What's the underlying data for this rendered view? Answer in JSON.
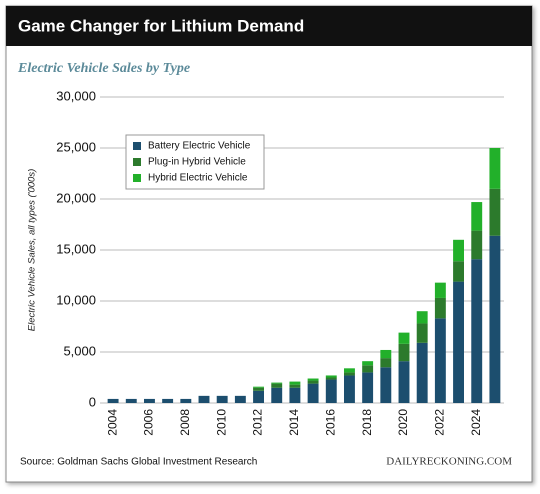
{
  "chart_data": {
    "type": "stacked_bar",
    "title": "Game Changer for Lithium Demand",
    "subtitle": "Electric Vehicle Sales by Type",
    "y_label": "Electric Vehicle Sales, all types ('000s)",
    "source": "Source: Goldman Sachs Global Investment Research",
    "brand": "DAILYRECKONING.COM",
    "categories": [
      "2004",
      null,
      "2006",
      null,
      "2008",
      null,
      "2010",
      null,
      "2012",
      null,
      "2014",
      null,
      "2016",
      null,
      "2018",
      null,
      "2020",
      null,
      "2022",
      null,
      "2024",
      null
    ],
    "series": [
      {
        "name": "Battery Electric Vehicle",
        "color": "#1c4e6e",
        "values": [
          400,
          400,
          400,
          400,
          400,
          700,
          700,
          700,
          1200,
          1500,
          1500,
          1900,
          2300,
          2700,
          3000,
          3500,
          4100,
          5900,
          8300,
          11900,
          14100,
          16400
        ]
      },
      {
        "name": "Plug-in Hybrid Vehicle",
        "color": "#2c7a2c",
        "values": [
          0,
          0,
          0,
          0,
          0,
          0,
          0,
          0,
          300,
          400,
          300,
          300,
          200,
          300,
          700,
          900,
          1700,
          1900,
          2000,
          2000,
          2800,
          4600
        ]
      },
      {
        "name": "Hybrid Electric Vehicle",
        "color": "#22b02a",
        "values": [
          0,
          0,
          0,
          0,
          0,
          0,
          0,
          0,
          100,
          100,
          300,
          200,
          200,
          400,
          400,
          800,
          1100,
          1200,
          1500,
          2100,
          2800,
          4000
        ]
      }
    ],
    "ylim": [
      0,
      30000
    ],
    "yticks": [
      0,
      {
        "value": 5000,
        "label": "5,000"
      },
      {
        "value": 10000,
        "label": "10,000"
      },
      {
        "value": 15000,
        "label": "15,000"
      },
      {
        "value": 20000,
        "label": "20,000"
      },
      {
        "value": 25000,
        "label": "25,000"
      },
      {
        "value": 30000,
        "label": "30,000"
      }
    ],
    "grid": true,
    "legend": "upper left"
  }
}
